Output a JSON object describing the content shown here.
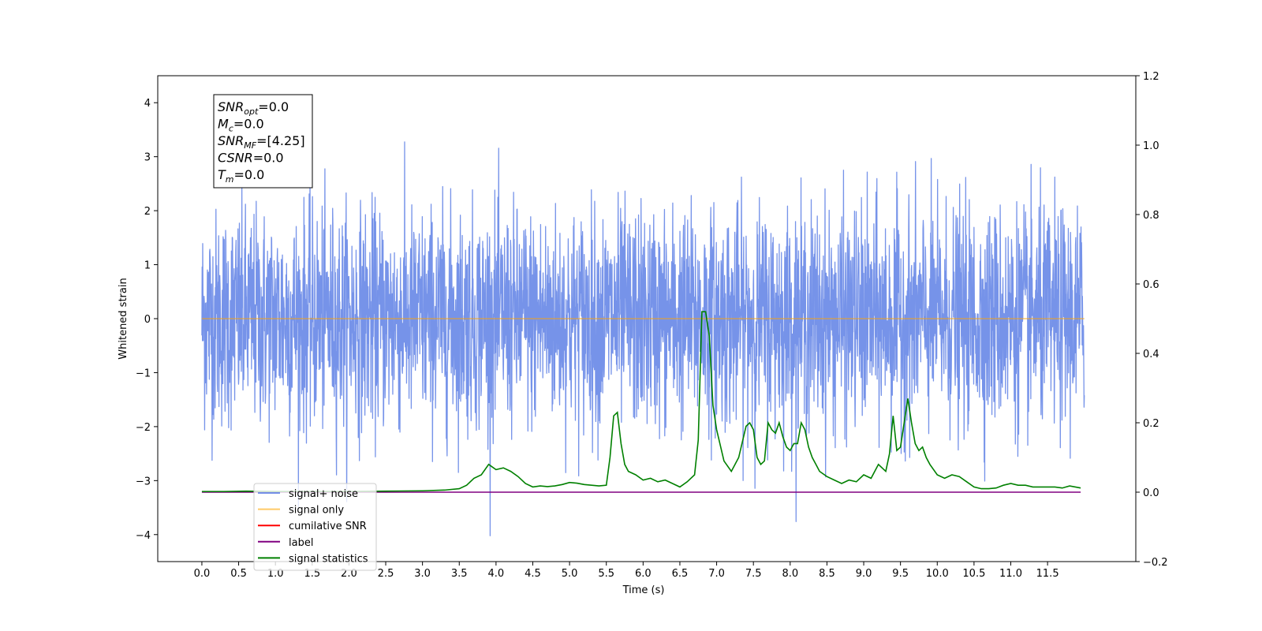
{
  "chart_data": {
    "type": "line",
    "xlabel": "Time (s)",
    "ylabel": "Whitened strain",
    "xlim": [
      -0.6,
      12.7
    ],
    "ylim": [
      -4.5,
      4.5
    ],
    "y2lim": [
      -0.2,
      1.2
    ],
    "x_ticks": [
      "0.0",
      "0.5",
      "1.0",
      "1.5",
      "2.0",
      "2.5",
      "3.0",
      "3.5",
      "4.0",
      "4.5",
      "5.0",
      "5.5",
      "6.0",
      "6.5",
      "7.0",
      "7.5",
      "8.0",
      "8.5",
      "9.0",
      "9.5",
      "10.0",
      "10.5",
      "11.0",
      "11.5"
    ],
    "y_ticks": [
      "4",
      "3",
      "2",
      "1",
      "0",
      "−1",
      "−2",
      "−3",
      "−4"
    ],
    "y2_ticks": [
      "1.2",
      "1.0",
      "0.8",
      "0.6",
      "0.4",
      "0.2",
      "0.0",
      "−0.2"
    ],
    "grid": false,
    "legend_position": "lower-left",
    "stats_box": {
      "lines": [
        {
          "symbol": "SNR",
          "sub": "opt",
          "text": "=0.0"
        },
        {
          "symbol": "M",
          "sub": "c",
          "text": "=0.0"
        },
        {
          "symbol": "SNR",
          "sub": "MF",
          "text": "=[4.25]"
        },
        {
          "symbol": "CSNR",
          "sub": "",
          "text": "=0.0"
        },
        {
          "symbol": "T",
          "sub": "m",
          "text": "=0.0"
        }
      ]
    },
    "series": [
      {
        "name": "signal+ noise",
        "color": "#4169e1",
        "axis": "left",
        "kind": "noise",
        "t_start": 0.0,
        "t_end": 12.0,
        "std": 1.0,
        "min": -4.1,
        "max": 4.1
      },
      {
        "name": "signal only",
        "color": "#ffa500",
        "axis": "left",
        "kind": "line",
        "x": [
          0.0,
          12.0
        ],
        "y": [
          0.0,
          0.0
        ]
      },
      {
        "name": "cumilative SNR",
        "color": "#ff0000",
        "axis": "right",
        "kind": "line",
        "x": [],
        "y": []
      },
      {
        "name": "label",
        "color": "#800080",
        "axis": "right",
        "kind": "line",
        "x": [
          0.0,
          11.95
        ],
        "y": [
          0.0,
          0.0
        ]
      },
      {
        "name": "signal statistics",
        "color": "#008000",
        "axis": "right",
        "kind": "line",
        "x": [
          0.0,
          0.3,
          0.6,
          1.0,
          1.5,
          2.0,
          2.5,
          3.0,
          3.3,
          3.5,
          3.6,
          3.7,
          3.8,
          3.9,
          4.0,
          4.1,
          4.2,
          4.3,
          4.4,
          4.5,
          4.6,
          4.7,
          4.8,
          4.9,
          5.0,
          5.1,
          5.2,
          5.3,
          5.4,
          5.5,
          5.55,
          5.6,
          5.65,
          5.7,
          5.75,
          5.8,
          5.9,
          6.0,
          6.1,
          6.2,
          6.3,
          6.4,
          6.5,
          6.6,
          6.7,
          6.75,
          6.8,
          6.85,
          6.9,
          6.95,
          7.0,
          7.1,
          7.2,
          7.3,
          7.4,
          7.45,
          7.5,
          7.55,
          7.6,
          7.65,
          7.7,
          7.75,
          7.8,
          7.85,
          7.9,
          7.95,
          8.0,
          8.05,
          8.1,
          8.15,
          8.2,
          8.25,
          8.3,
          8.35,
          8.4,
          8.5,
          8.6,
          8.7,
          8.8,
          8.9,
          9.0,
          9.1,
          9.2,
          9.3,
          9.35,
          9.4,
          9.45,
          9.5,
          9.55,
          9.6,
          9.65,
          9.7,
          9.75,
          9.8,
          9.85,
          9.9,
          10.0,
          10.1,
          10.2,
          10.3,
          10.4,
          10.5,
          10.6,
          10.7,
          10.8,
          10.9,
          11.0,
          11.1,
          11.2,
          11.3,
          11.4,
          11.5,
          11.6,
          11.7,
          11.8,
          11.9,
          11.95
        ],
        "y": [
          0.002,
          0.002,
          0.003,
          0.002,
          0.002,
          0.002,
          0.003,
          0.004,
          0.006,
          0.01,
          0.02,
          0.04,
          0.05,
          0.08,
          0.065,
          0.07,
          0.06,
          0.045,
          0.025,
          0.015,
          0.018,
          0.016,
          0.018,
          0.022,
          0.028,
          0.026,
          0.022,
          0.02,
          0.018,
          0.02,
          0.1,
          0.22,
          0.23,
          0.14,
          0.08,
          0.06,
          0.05,
          0.035,
          0.04,
          0.03,
          0.035,
          0.025,
          0.015,
          0.03,
          0.05,
          0.15,
          0.52,
          0.52,
          0.45,
          0.25,
          0.18,
          0.09,
          0.06,
          0.1,
          0.19,
          0.2,
          0.18,
          0.1,
          0.08,
          0.09,
          0.2,
          0.18,
          0.17,
          0.2,
          0.16,
          0.13,
          0.12,
          0.14,
          0.14,
          0.2,
          0.18,
          0.13,
          0.1,
          0.08,
          0.06,
          0.045,
          0.035,
          0.025,
          0.035,
          0.03,
          0.05,
          0.04,
          0.08,
          0.06,
          0.11,
          0.22,
          0.12,
          0.13,
          0.2,
          0.27,
          0.2,
          0.14,
          0.12,
          0.13,
          0.1,
          0.08,
          0.05,
          0.04,
          0.05,
          0.045,
          0.03,
          0.015,
          0.01,
          0.01,
          0.012,
          0.02,
          0.025,
          0.02,
          0.02,
          0.015,
          0.015,
          0.015,
          0.015,
          0.012,
          0.018,
          0.014,
          0.012
        ]
      }
    ]
  }
}
